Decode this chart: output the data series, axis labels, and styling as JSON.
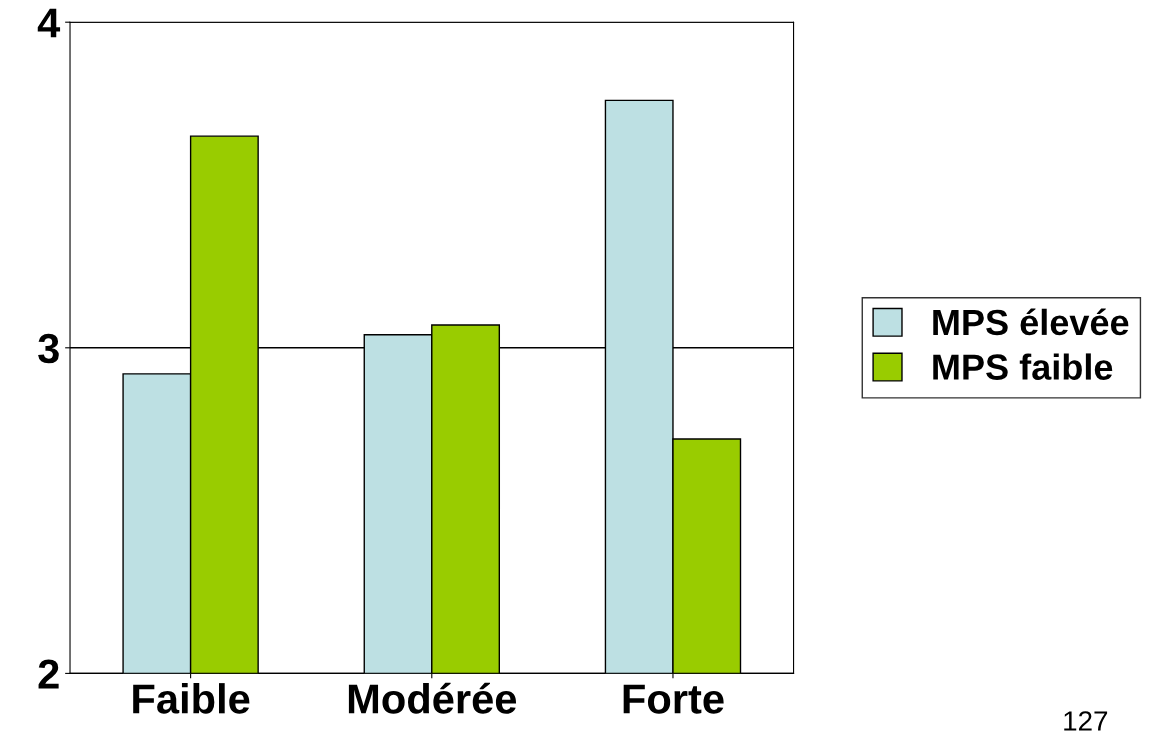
{
  "chart_data": {
    "type": "bar",
    "categories": [
      "Faible",
      "Modérée",
      "Forte"
    ],
    "series": [
      {
        "name": "MPS élevée",
        "color": "#bde0e3",
        "values": [
          2.92,
          3.04,
          3.76
        ]
      },
      {
        "name": "MPS faible",
        "color": "#99cc00",
        "values": [
          3.65,
          3.07,
          2.72
        ]
      }
    ],
    "ylim": [
      2,
      4
    ],
    "yticks": [
      2,
      3,
      4
    ],
    "grid": "y",
    "legend": "right",
    "annotations": [
      "127"
    ]
  }
}
